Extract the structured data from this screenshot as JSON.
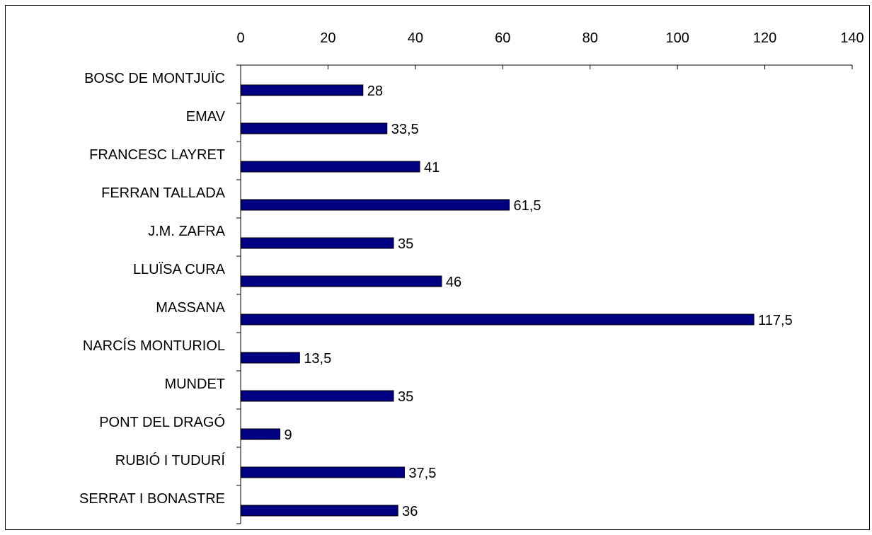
{
  "chart_data": {
    "type": "bar",
    "orientation": "horizontal",
    "title": "",
    "xlabel": "",
    "ylabel": "",
    "categories": [
      "BOSC DE MONTJUÏC",
      "EMAV",
      "FRANCESC LAYRET",
      "FERRAN TALLADA",
      "J.M. ZAFRA",
      "LLUÏSA CURA",
      "MASSANA",
      "NARCÍS MONTURIOL",
      "MUNDET",
      "PONT DEL DRAGÓ",
      "RUBIÓ I TUDURÍ",
      "SERRAT I BONASTRE"
    ],
    "values": [
      28,
      33.5,
      41,
      61.5,
      35,
      46,
      117.5,
      13.5,
      35,
      9,
      37.5,
      36
    ],
    "value_labels": [
      "28",
      "33,5",
      "41",
      "61,5",
      "35",
      "46",
      "117,5",
      "13,5",
      "35",
      "9",
      "37,5",
      "36"
    ],
    "xlim": [
      0,
      140
    ],
    "x_ticks": [
      "0",
      "20",
      "40",
      "60",
      "80",
      "100",
      "120",
      "140"
    ],
    "x_axis_position": "top",
    "grid": false,
    "legend": "none",
    "bar_color": "#000080"
  }
}
